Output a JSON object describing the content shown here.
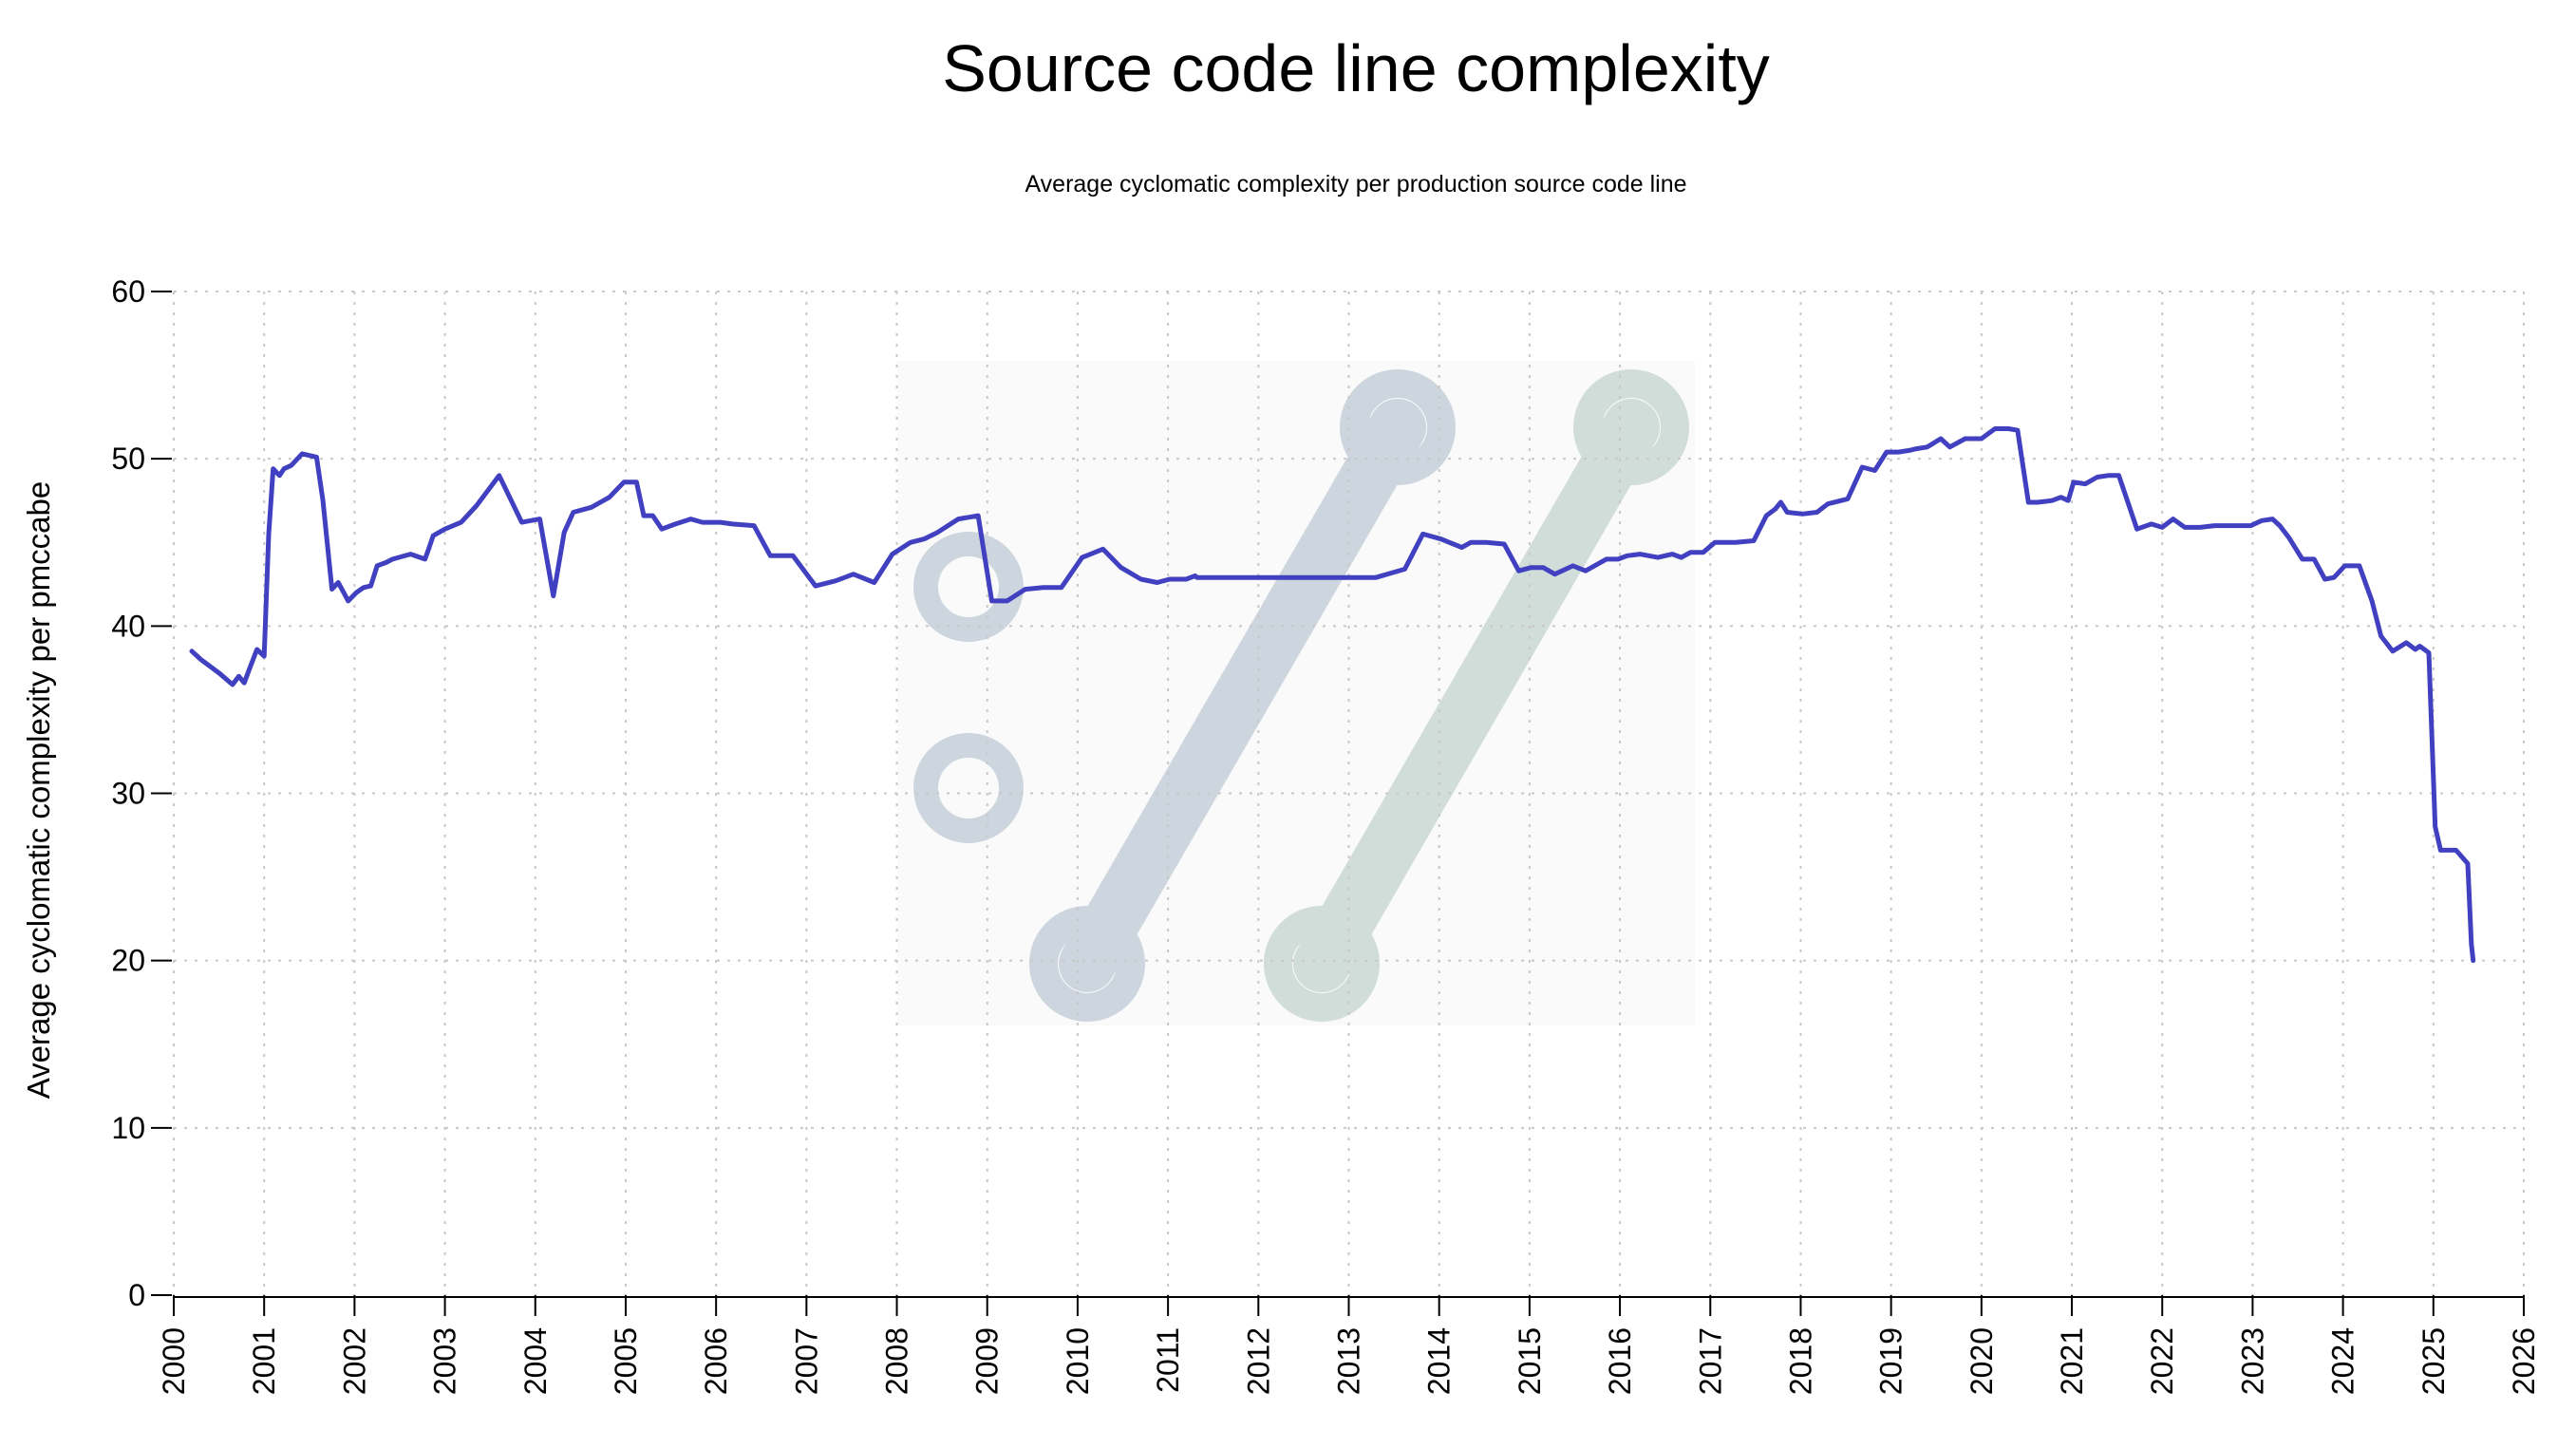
{
  "chart_data": {
    "type": "line",
    "title": "Source code line complexity",
    "subtitle": "Average cyclomatic complexity per production source code line",
    "xlabel": "",
    "ylabel": "Average cyclomatic complexity per pmccabe",
    "xlim": [
      2000,
      2026
    ],
    "ylim": [
      0,
      60
    ],
    "x_ticks": [
      "2000",
      "2001",
      "2002",
      "2003",
      "2004",
      "2005",
      "2006",
      "2007",
      "2008",
      "2009",
      "2010",
      "2011",
      "2012",
      "2013",
      "2014",
      "2015",
      "2016",
      "2017",
      "2018",
      "2019",
      "2020",
      "2021",
      "2022",
      "2023",
      "2024",
      "2025",
      "2026"
    ],
    "y_ticks": [
      "0",
      "10",
      "20",
      "30",
      "40",
      "50",
      "60"
    ],
    "grid": true,
    "line_color": "#4040c0",
    "series": [
      {
        "x": [
          2000.2,
          2000.3,
          2000.5,
          2000.65,
          2000.72,
          2000.78,
          2000.82,
          2000.92,
          2001.0,
          2001.05,
          2001.1,
          2001.17,
          2001.22,
          2001.3,
          2001.42,
          2001.58,
          2001.65,
          2001.75,
          2001.82,
          2001.88,
          2001.93,
          2002.02,
          2002.1,
          2002.18,
          2002.25,
          2002.35,
          2002.42,
          2002.62,
          2002.78,
          2002.82,
          2002.87,
          2003.0,
          2003.18,
          2003.35,
          2003.6,
          2003.85,
          2004.05,
          2004.2,
          2004.32,
          2004.42,
          2004.62,
          2004.82,
          2004.98,
          2005.12,
          2005.2,
          2005.3,
          2005.4,
          2005.55,
          2005.72,
          2005.85,
          2006.05,
          2006.18,
          2006.42,
          2006.6,
          2006.85,
          2007.1,
          2007.32,
          2007.52,
          2007.75,
          2007.95,
          2008.15,
          2008.3,
          2008.45,
          2008.68,
          2008.9,
          2009.05,
          2009.12,
          2009.22,
          2009.42,
          2009.62,
          2009.82,
          2010.05,
          2010.28,
          2010.48,
          2010.7,
          2010.88,
          2011.02,
          2011.2,
          2011.3,
          2011.32,
          2013.3,
          2013.62,
          2013.82,
          2014.02,
          2014.25,
          2014.35,
          2014.52,
          2014.72,
          2014.88,
          2015.02,
          2015.15,
          2015.28,
          2015.48,
          2015.62,
          2015.85,
          2015.98,
          2016.08,
          2016.22,
          2016.42,
          2016.58,
          2016.68,
          2016.78,
          2016.92,
          2017.05,
          2017.18,
          2017.28,
          2017.48,
          2017.62,
          2017.72,
          2017.78,
          2017.85,
          2018.02,
          2018.18,
          2018.3,
          2018.52,
          2018.68,
          2018.82,
          2018.95,
          2019.08,
          2019.2,
          2019.28,
          2019.4,
          2019.55,
          2019.65,
          2019.82,
          2020.0,
          2020.15,
          2020.3,
          2020.4,
          2020.52,
          2020.62,
          2020.78,
          2020.88,
          2020.96,
          2021.02,
          2021.15,
          2021.28,
          2021.4,
          2021.52,
          2021.72,
          2021.88,
          2022.0,
          2022.12,
          2022.25,
          2022.42,
          2022.58,
          2022.72,
          2022.85,
          2022.98,
          2023.1,
          2023.22,
          2023.3,
          2023.4,
          2023.55,
          2023.68,
          2023.8,
          2023.9,
          2024.02,
          2024.18,
          2024.32,
          2024.42,
          2024.55,
          2024.7,
          2024.8,
          2024.85,
          2024.95,
          2025.02,
          2025.08,
          2025.15,
          2025.25,
          2025.38,
          2025.42,
          2025.44
        ],
        "y": [
          38.5,
          38.0,
          37.2,
          36.5,
          37.0,
          36.6,
          37.2,
          38.6,
          38.2,
          45.5,
          49.4,
          49.0,
          49.4,
          49.6,
          50.3,
          50.1,
          47.5,
          42.2,
          42.6,
          42.0,
          41.5,
          42.0,
          42.3,
          42.4,
          43.6,
          43.8,
          44.0,
          44.3,
          44.0,
          44.6,
          45.4,
          45.8,
          46.2,
          47.2,
          49.0,
          46.2,
          46.4,
          41.8,
          45.6,
          46.8,
          47.1,
          47.7,
          48.6,
          48.6,
          46.6,
          46.6,
          45.8,
          46.1,
          46.4,
          46.2,
          46.2,
          46.1,
          46.0,
          44.2,
          44.2,
          42.4,
          42.7,
          43.1,
          42.6,
          44.3,
          45.0,
          45.2,
          45.6,
          46.4,
          46.6,
          41.5,
          41.5,
          41.5,
          42.2,
          42.3,
          42.3,
          44.1,
          44.6,
          43.5,
          42.8,
          42.6,
          42.8,
          42.8,
          43.0,
          42.9,
          42.9,
          43.4,
          45.5,
          45.2,
          44.7,
          45.0,
          45.0,
          44.9,
          43.3,
          43.5,
          43.5,
          43.1,
          43.6,
          43.3,
          44.0,
          44.0,
          44.2,
          44.3,
          44.1,
          44.3,
          44.1,
          44.4,
          44.4,
          45.0,
          45.0,
          45.0,
          45.1,
          46.6,
          47.0,
          47.4,
          46.8,
          46.7,
          46.8,
          47.3,
          47.6,
          49.5,
          49.3,
          50.4,
          50.4,
          50.5,
          50.6,
          50.7,
          51.2,
          50.7,
          51.2,
          51.2,
          51.8,
          51.8,
          51.7,
          47.4,
          47.4,
          47.5,
          47.7,
          47.5,
          48.6,
          48.5,
          48.9,
          49.0,
          49.0,
          45.8,
          46.1,
          45.9,
          46.4,
          45.9,
          45.9,
          46.0,
          46.0,
          46.0,
          46.0,
          46.3,
          46.4,
          46.0,
          45.3,
          44.0,
          44.0,
          42.8,
          42.9,
          43.6,
          43.6,
          41.5,
          39.4,
          38.5,
          39.0,
          38.6,
          38.8,
          38.4,
          28.0,
          26.6,
          26.6,
          26.6,
          25.8,
          21.0,
          20.0
        ],
        "color": "#4040c0"
      }
    ]
  },
  "watermark": {
    "description_colors": [
      "#cdd5de",
      "#d0ddd8"
    ]
  }
}
